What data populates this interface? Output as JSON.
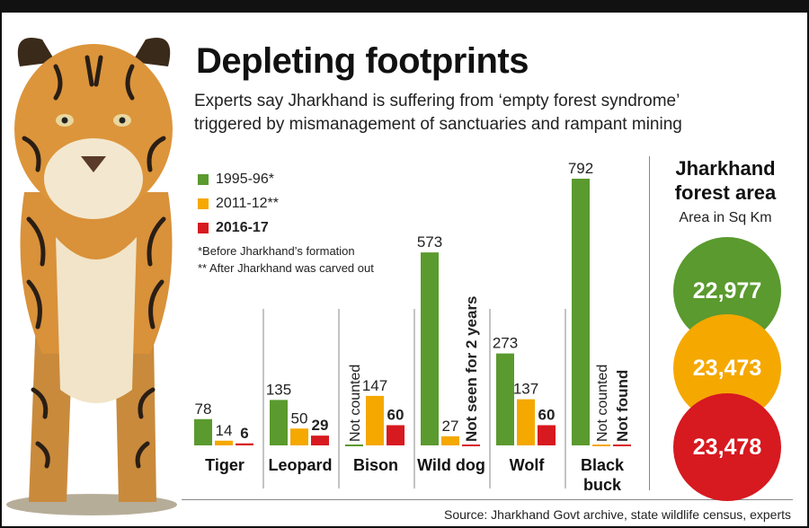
{
  "title": "Depleting footprints",
  "subtitle_lines": [
    "Experts say Jharkhand is suffering from ‘empty forest syndrome’",
    "triggered by mismanagement of sanctuaries and rampant mining"
  ],
  "legend": [
    {
      "label": "1995-96*",
      "color": "#5a9a2e"
    },
    {
      "label": "2011-12**",
      "color": "#f5a800"
    },
    {
      "label": "2016-17",
      "color": "#d71920"
    }
  ],
  "notes": [
    "*Before Jharkhand’s formation",
    "** After Jharkhand was carved out"
  ],
  "chart_data": {
    "type": "bar",
    "categories": [
      "Tiger",
      "Leopard",
      "Bison",
      "Wild dog",
      "Wolf",
      "Black buck"
    ],
    "series": [
      {
        "name": "1995-96*",
        "values": [
          78,
          135,
          null,
          573,
          273,
          792
        ]
      },
      {
        "name": "2011-12**",
        "values": [
          14,
          50,
          147,
          27,
          137,
          null
        ]
      },
      {
        "name": "2016-17",
        "values": [
          6,
          29,
          60,
          null,
          60,
          null
        ]
      }
    ],
    "status_labels": [
      {
        "category": "Bison",
        "series": "1995-96*",
        "text": "Not counted"
      },
      {
        "category": "Wild dog",
        "series": "2016-17",
        "text": "Not seen for 2 years"
      },
      {
        "category": "Black buck",
        "series": "2011-12**",
        "text": "Not counted"
      },
      {
        "category": "Black buck",
        "series": "2016-17",
        "text": "Not found"
      }
    ],
    "title": "Depleting footprints",
    "xlabel": "",
    "ylabel": "",
    "ylim": [
      0,
      800
    ],
    "grid": false,
    "legend_position": "top-left"
  },
  "forest": {
    "title_line1": "Jharkhand",
    "title_line2": "forest area",
    "subtitle": "Area in Sq Km",
    "circles": [
      {
        "value": "22,977",
        "color": "#5a9a2e"
      },
      {
        "value": "23,473",
        "color": "#f5a800"
      },
      {
        "value": "23,478",
        "color": "#d71920"
      }
    ]
  },
  "source": "Source: Jharkhand Govt archive, state wildlife census, experts"
}
